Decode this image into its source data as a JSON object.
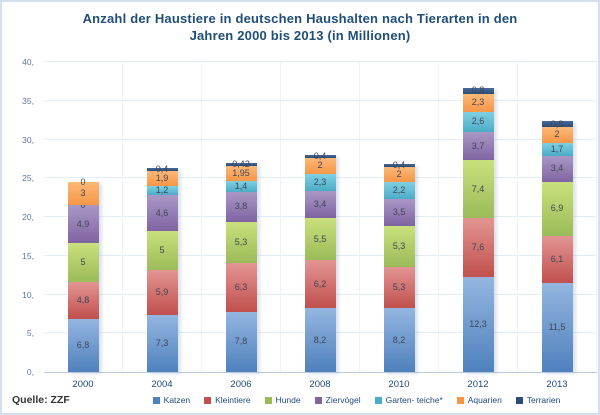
{
  "title": {
    "line1": "Anzahl der Haustiere in deutschen Haushalten nach Tierarten in den",
    "line2": "Jahren 2000 bis 2013 (in Millionen)"
  },
  "source": "Quelle: ZZF",
  "chart_data": {
    "type": "bar",
    "stacked": true,
    "title": "Anzahl der Haustiere in deutschen Haushalten nach Tierarten in den Jahren 2000 bis 2013 (in Millionen)",
    "categories": [
      "2000",
      "2004",
      "2006",
      "2008",
      "2010",
      "2012",
      "2013"
    ],
    "ylim": [
      0,
      40
    ],
    "y_tick_step": 5,
    "y_tick_labels": [
      "0,",
      "5,",
      "10,",
      "15,",
      "20,",
      "25,",
      "30,",
      "35,",
      "40,"
    ],
    "grid": true,
    "legend_position": "bottom",
    "series": [
      {
        "name": "Katzen",
        "color": "#4f81bd",
        "color_light": "#94b6e0",
        "values": [
          6.8,
          7.3,
          7.8,
          8.2,
          8.2,
          12.3,
          11.5
        ],
        "labels": [
          "6,8",
          "7,3",
          "7,8",
          "8,2",
          "8,2",
          "12,3",
          "11,5"
        ]
      },
      {
        "name": "Kleintiere",
        "color": "#c0504d",
        "color_light": "#e39593",
        "values": [
          4.8,
          5.9,
          6.3,
          6.2,
          5.3,
          7.6,
          6.1
        ],
        "labels": [
          "4,8",
          "5,9",
          "6,3",
          "6,2",
          "5,3",
          "7,6",
          "6,1"
        ]
      },
      {
        "name": "Hunde",
        "color": "#9bbb59",
        "color_light": "#c9e17c",
        "values": [
          5,
          5,
          5.3,
          5.5,
          5.3,
          7.4,
          6.9
        ],
        "labels": [
          "5",
          "5",
          "5,3",
          "5,5",
          "5,3",
          "7,4",
          "6,9"
        ]
      },
      {
        "name": "Ziervögel",
        "color": "#8064a2",
        "color_light": "#a998c5",
        "values": [
          4.9,
          4.6,
          3.8,
          3.4,
          3.5,
          3.7,
          3.4
        ],
        "labels": [
          "4,9",
          "4,6",
          "3,8",
          "3,4",
          "3,5",
          "3,7",
          "3,4"
        ]
      },
      {
        "name": "Garten- teiche*",
        "color": "#4bacc6",
        "color_light": "#7ed0e2",
        "values": [
          0,
          1.2,
          1.4,
          2.3,
          2.2,
          2.6,
          1.7
        ],
        "labels": [
          "0",
          "1,2",
          "1,4",
          "2,3",
          "2,2",
          "2,6",
          "1,7"
        ]
      },
      {
        "name": "Aquarien",
        "color": "#f79646",
        "color_light": "#fbb978",
        "values": [
          3,
          1.9,
          1.95,
          2,
          2,
          2.3,
          2
        ],
        "labels": [
          "3",
          "1,9",
          "1,95",
          "2",
          "2",
          "2,3",
          "2"
        ]
      },
      {
        "name": "Terrarien",
        "color": "#2c4d75",
        "color_light": "#48699b",
        "values": [
          0,
          0.4,
          0.42,
          0.4,
          0.4,
          0.8,
          0.8
        ],
        "labels": [
          "0",
          "0,4",
          "0,42",
          "0,4",
          "0,4",
          "0,8",
          "0,8"
        ]
      }
    ]
  }
}
